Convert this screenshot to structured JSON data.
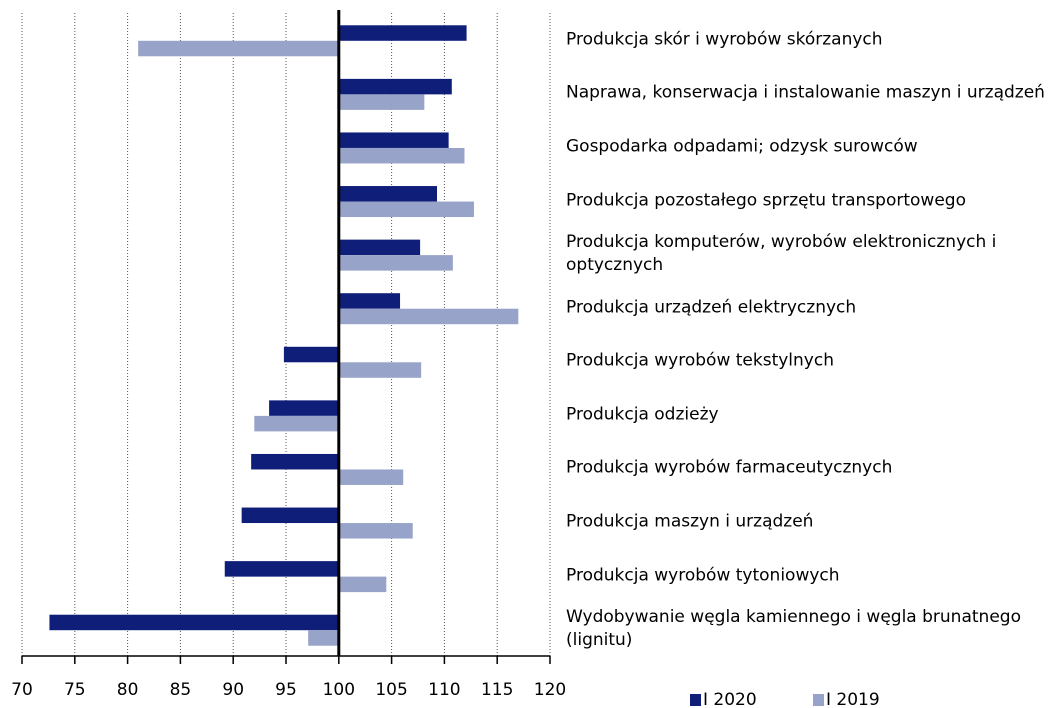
{
  "chart_data": {
    "type": "barh",
    "categories": [
      "Produkcja skór i wyrobów skórzanych",
      "Naprawa, konserwacja i instalowanie maszyn i urządzeń",
      "Gospodarka odpadami; odzysk surowców",
      "Produkcja pozostałego sprzętu transportowego",
      "Produkcja komputerów, wyrobów elektronicznych i optycznych",
      "Produkcja urządzeń elektrycznych",
      "Produkcja wyrobów tekstylnych",
      "Produkcja odzieży",
      "Produkcja wyrobów farmaceutycznych",
      "Produkcja maszyn i urządzeń",
      "Produkcja wyrobów tytoniowych",
      "Wydobywanie węgla kamiennego i węgla brunatnego (lignitu)"
    ],
    "series": [
      {
        "name": "I 2020",
        "color": "#0f1e78",
        "values": [
          112.1,
          110.7,
          110.4,
          109.3,
          107.7,
          105.8,
          94.8,
          93.4,
          91.7,
          90.8,
          89.2,
          72.6
        ]
      },
      {
        "name": "I 2019",
        "color": "#97a3c8",
        "values": [
          81.0,
          108.1,
          111.9,
          112.8,
          110.8,
          117.0,
          107.8,
          92.0,
          106.1,
          107.0,
          104.5,
          97.1
        ]
      }
    ],
    "xlim": [
      70,
      120
    ],
    "xticks": [
      70,
      75,
      80,
      85,
      90,
      95,
      100,
      105,
      110,
      115,
      120
    ],
    "x_axis_crosses": 100,
    "grid": true,
    "legend": "bottom"
  }
}
